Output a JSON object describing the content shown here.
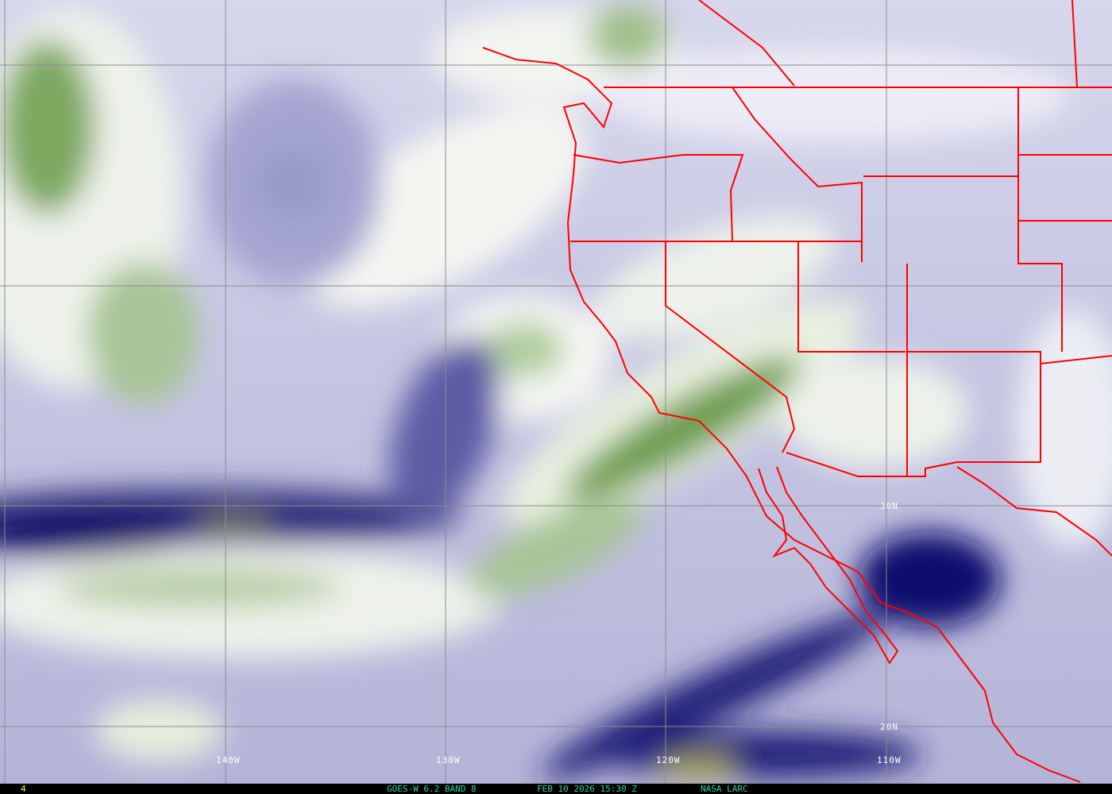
{
  "map": {
    "grid_labels": {
      "lon": [
        "140W",
        "130W",
        "120W",
        "110W"
      ],
      "lat": [
        "30N",
        "20N"
      ]
    },
    "colors": {
      "boundaries": "#ff0000",
      "grid": "#8c8c8c",
      "dry": "#0c0c6e",
      "moist": "#4a8a2a",
      "status_text": "#19d9a0",
      "frame_number": "#ffff00"
    }
  },
  "status_bar": {
    "frame": "4",
    "satellite": "GOES-W 6.2 BAND 8",
    "datetime": "FEB 10 2026 15:30 Z",
    "source": "NASA LARC"
  }
}
